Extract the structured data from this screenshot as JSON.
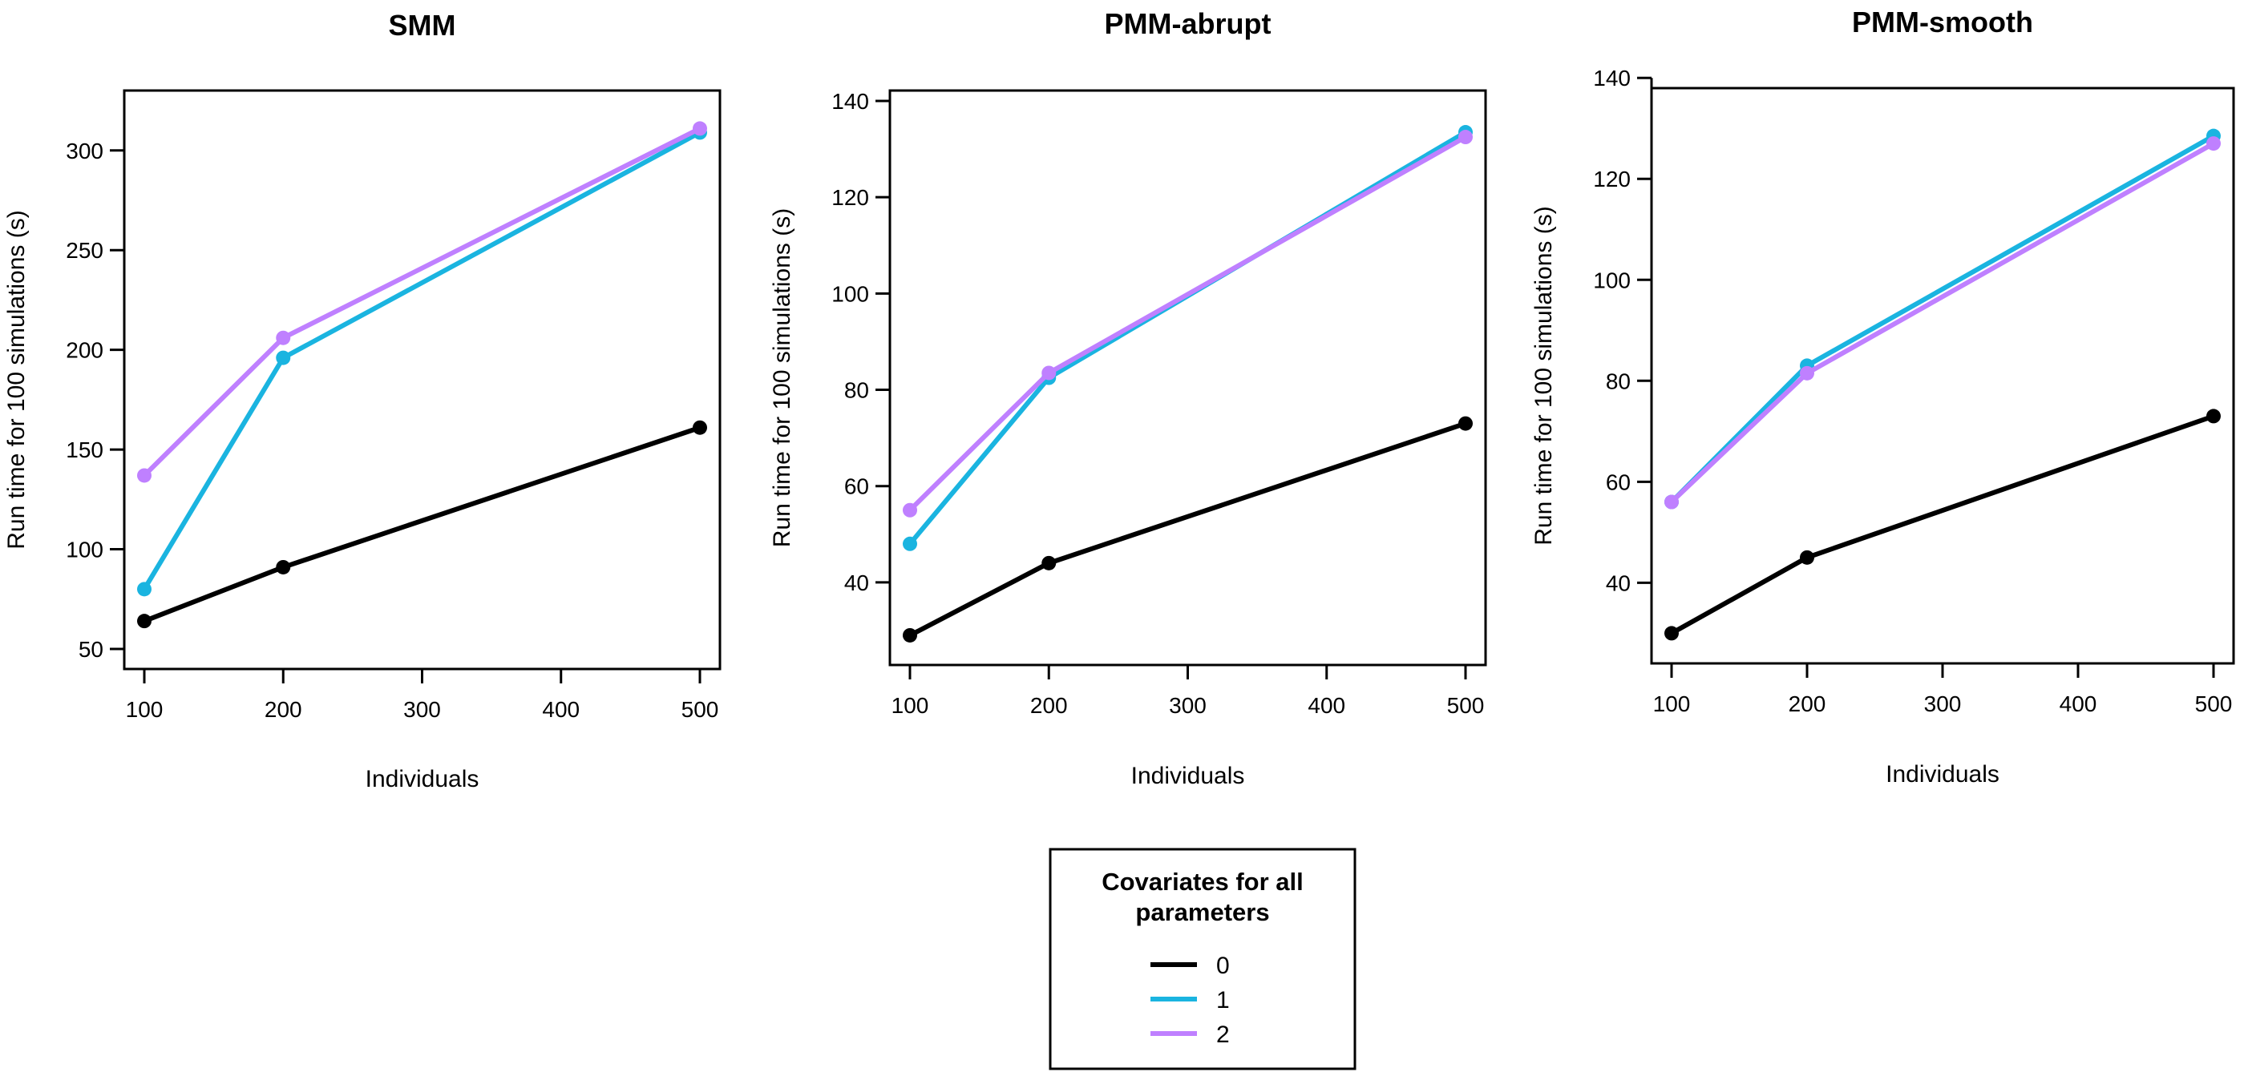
{
  "legend": {
    "title_line1": "Covariates for all",
    "title_line2": "parameters",
    "entries": [
      {
        "label": "0",
        "color": "#000000"
      },
      {
        "label": "1",
        "color": "#1AB4E0"
      },
      {
        "label": "2",
        "color": "#BF80FF"
      }
    ]
  },
  "chart_data": [
    {
      "type": "line",
      "title": "SMM",
      "xlabel": "Individuals",
      "ylabel": "Run time for 100 simulations (s)",
      "x": [
        100,
        200,
        500
      ],
      "xlim": [
        100,
        500
      ],
      "ylim": [
        50,
        320
      ],
      "x_ticks": [
        100,
        200,
        300,
        400,
        500
      ],
      "y_ticks": [
        50,
        100,
        150,
        200,
        250,
        300
      ],
      "grid": false,
      "series": [
        {
          "name": "0",
          "color": "#000000",
          "values": [
            64,
            91,
            161
          ]
        },
        {
          "name": "1",
          "color": "#1AB4E0",
          "values": [
            80,
            196,
            309
          ]
        },
        {
          "name": "2",
          "color": "#BF80FF",
          "values": [
            137,
            206,
            311
          ]
        }
      ]
    },
    {
      "type": "line",
      "title": "PMM-abrupt",
      "xlabel": "Individuals",
      "ylabel": "Run time for 100 simulations (s)",
      "x": [
        100,
        200,
        500
      ],
      "xlim": [
        100,
        500
      ],
      "ylim": [
        27,
        138
      ],
      "x_ticks": [
        100,
        200,
        300,
        400,
        500
      ],
      "y_ticks": [
        40,
        60,
        80,
        100,
        120,
        140
      ],
      "grid": false,
      "series": [
        {
          "name": "0",
          "color": "#000000",
          "values": [
            29,
            44,
            73
          ]
        },
        {
          "name": "1",
          "color": "#1AB4E0",
          "values": [
            48,
            82.5,
            133.5
          ]
        },
        {
          "name": "2",
          "color": "#BF80FF",
          "values": [
            55,
            83.5,
            132.5
          ]
        }
      ]
    },
    {
      "type": "line",
      "title": "PMM-smooth",
      "xlabel": "Individuals",
      "ylabel": "Run time for 100 simulations (s)",
      "x": [
        100,
        200,
        500
      ],
      "xlim": [
        100,
        500
      ],
      "ylim": [
        28,
        134
      ],
      "x_ticks": [
        100,
        200,
        300,
        400,
        500
      ],
      "y_ticks": [
        40,
        60,
        80,
        100,
        120,
        140
      ],
      "grid": false,
      "series": [
        {
          "name": "0",
          "color": "#000000",
          "values": [
            30,
            45,
            73
          ]
        },
        {
          "name": "1",
          "color": "#1AB4E0",
          "values": [
            56,
            83,
            128.5
          ]
        },
        {
          "name": "2",
          "color": "#BF80FF",
          "values": [
            56,
            81.5,
            127
          ]
        }
      ]
    }
  ]
}
